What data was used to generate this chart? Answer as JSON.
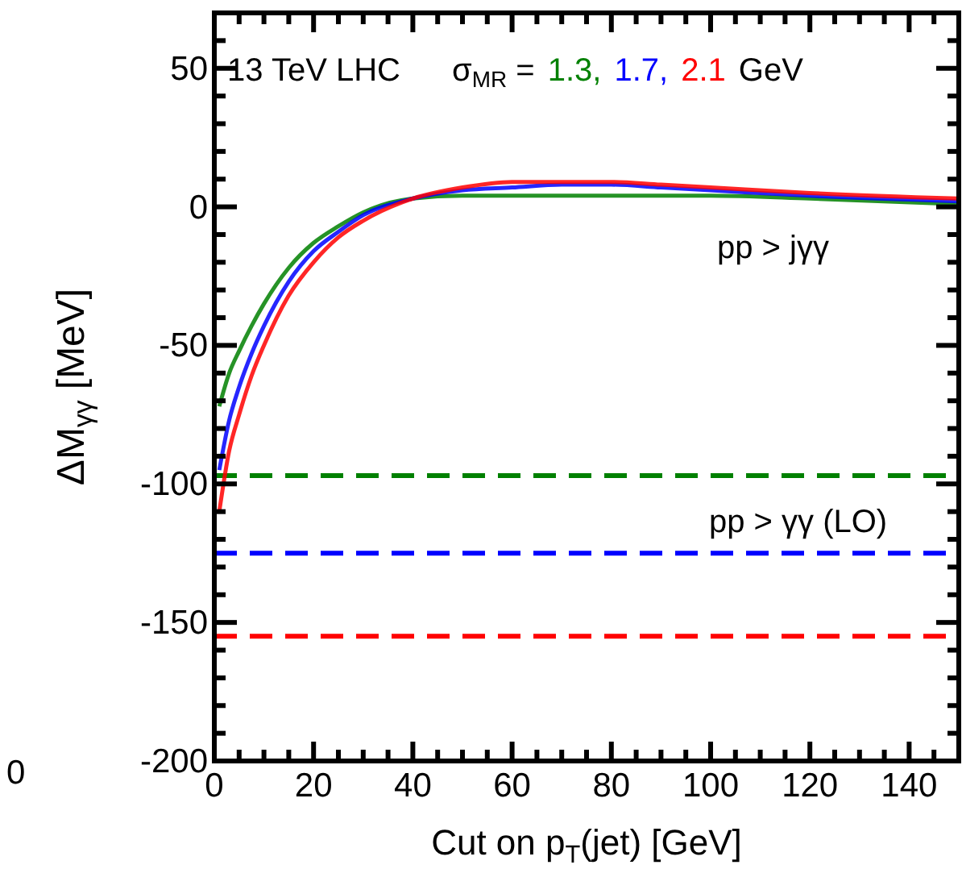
{
  "chart_data": {
    "type": "line",
    "xlabel": "Cut on p$_{T}$(jet)  [GeV]",
    "ylabel": "ΔM$_{γγ}$  [MeV]",
    "legend_title": "σ$_{MR}$ =",
    "legend": "top",
    "x": [
      1,
      3,
      5,
      7.5,
      10,
      15,
      20,
      25,
      30,
      40,
      50,
      60,
      70,
      80,
      90,
      100,
      120,
      150
    ],
    "series": [
      {
        "name": "1.3,",
        "color": "#008000",
        "values": [
          -72,
          -60,
          -52,
          -43,
          -35,
          -22,
          -13,
          -7,
          -2,
          3,
          4,
          4,
          4,
          4,
          4,
          4,
          3,
          1
        ]
      },
      {
        "name": "1.7,",
        "color": "#0000ff",
        "values": [
          -95,
          -77,
          -65,
          -53,
          -43,
          -27,
          -16,
          -9,
          -3,
          3,
          6,
          7,
          8,
          8,
          7,
          6,
          4,
          2
        ]
      },
      {
        "name": "2.1",
        "color": "#ff0000",
        "values": [
          -110,
          -88,
          -75,
          -61,
          -50,
          -32,
          -20,
          -11,
          -5,
          3,
          7,
          9,
          9,
          9,
          8,
          7,
          5,
          3
        ]
      }
    ],
    "ref_lines": [
      {
        "axis": "y",
        "value": -97,
        "color": "#008000",
        "line_style": "dashed"
      },
      {
        "axis": "y",
        "value": -125,
        "color": "#0000ff",
        "line_style": "dashed"
      },
      {
        "axis": "y",
        "value": -155,
        "color": "#ff0000",
        "line_style": "dashed"
      }
    ],
    "annotations": [
      "13 TeV LHC",
      "GeV",
      "0",
      "pp > jγγ",
      "pp > γγ (LO)"
    ],
    "xlim": [
      0,
      150
    ],
    "ylim": [
      -200,
      70
    ],
    "xticks": [
      0,
      {
        "value": 5,
        "label": null
      },
      {
        "value": 10,
        "label": null
      },
      {
        "value": 15,
        "label": null
      },
      20,
      {
        "value": 25,
        "label": null
      },
      {
        "value": 30,
        "label": null
      },
      {
        "value": 35,
        "label": null
      },
      40,
      {
        "value": 45,
        "label": null
      },
      {
        "value": 50,
        "label": null
      },
      {
        "value": 55,
        "label": null
      },
      60,
      {
        "value": 65,
        "label": null
      },
      {
        "value": 70,
        "label": null
      },
      {
        "value": 75,
        "label": null
      },
      80,
      {
        "value": 85,
        "label": null
      },
      {
        "value": 90,
        "label": null
      },
      {
        "value": 95,
        "label": null
      },
      100,
      {
        "value": 105,
        "label": null
      },
      {
        "value": 110,
        "label": null
      },
      {
        "value": 115,
        "label": null
      },
      120,
      {
        "value": 125,
        "label": null
      },
      {
        "value": 130,
        "label": null
      },
      {
        "value": 135,
        "label": null
      },
      140,
      {
        "value": 145,
        "label": null
      }
    ],
    "yticks": [
      -200,
      {
        "value": -190,
        "label": null
      },
      {
        "value": -180,
        "label": null
      },
      {
        "value": -170,
        "label": null
      },
      {
        "value": -160,
        "label": null
      },
      -150,
      {
        "value": -140,
        "label": null
      },
      {
        "value": -130,
        "label": null
      },
      {
        "value": -120,
        "label": null
      },
      {
        "value": -110,
        "label": null
      },
      -100,
      {
        "value": -90,
        "label": null
      },
      {
        "value": -80,
        "label": null
      },
      {
        "value": -70,
        "label": null
      },
      {
        "value": -60,
        "label": null
      },
      -50,
      {
        "value": -40,
        "label": null
      },
      {
        "value": -30,
        "label": null
      },
      {
        "value": -20,
        "label": null
      },
      {
        "value": -10,
        "label": null
      },
      0,
      {
        "value": 10,
        "label": null
      },
      {
        "value": 20,
        "label": null
      },
      {
        "value": 30,
        "label": null
      },
      {
        "value": 40,
        "label": null
      },
      50,
      {
        "value": 60,
        "label": null
      }
    ],
    "grid": false,
    "marker": "none",
    "line_style": "solid"
  }
}
